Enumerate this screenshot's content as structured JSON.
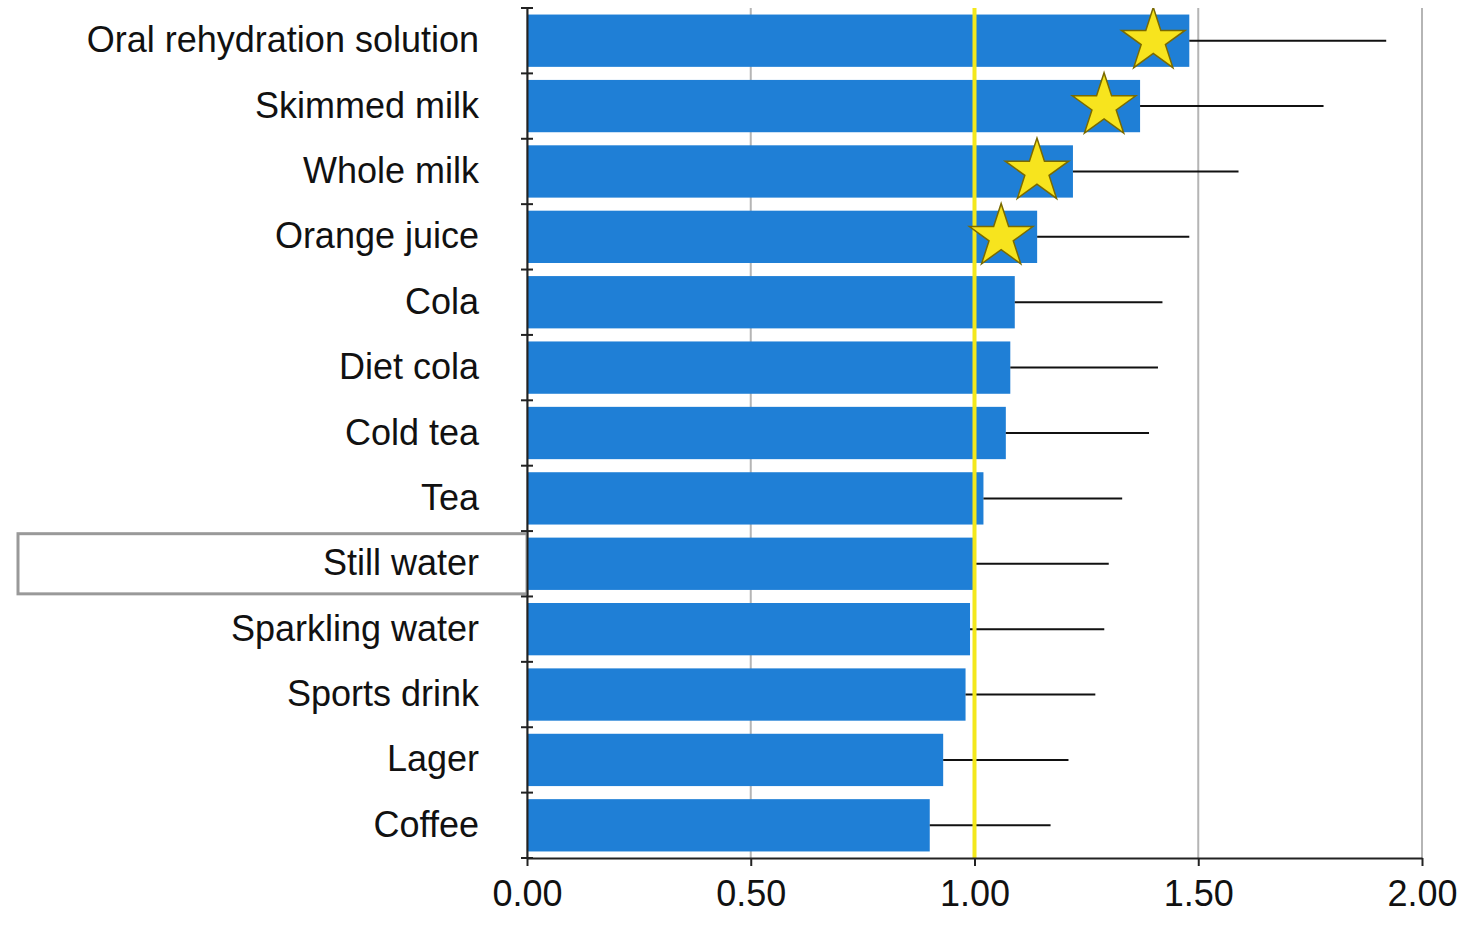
{
  "chart_data": {
    "type": "bar",
    "orientation": "horizontal",
    "categories": [
      "Oral rehydration solution",
      "Skimmed milk",
      "Whole milk",
      "Orange juice",
      "Cola",
      "Diet cola",
      "Cold tea",
      "Tea",
      "Still water",
      "Sparkling water",
      "Sports drink",
      "Lager",
      "Coffee"
    ],
    "values": [
      1.48,
      1.37,
      1.22,
      1.14,
      1.09,
      1.08,
      1.07,
      1.02,
      1.0,
      0.99,
      0.98,
      0.93,
      0.9
    ],
    "errors": [
      0.44,
      0.41,
      0.37,
      0.34,
      0.33,
      0.33,
      0.32,
      0.31,
      0.3,
      0.3,
      0.29,
      0.28,
      0.27
    ],
    "significant": [
      true,
      true,
      true,
      true,
      false,
      false,
      false,
      false,
      false,
      false,
      false,
      false,
      false
    ],
    "highlighted": [
      false,
      false,
      false,
      false,
      false,
      false,
      false,
      false,
      true,
      false,
      false,
      false,
      false
    ],
    "reference_x": 1,
    "color": "#1f7fd6",
    "xlim": [
      0,
      2
    ],
    "xticks": [
      {
        "value": 0,
        "label": "0.00"
      },
      {
        "value": 0.5,
        "label": "0.50"
      },
      {
        "value": 1,
        "label": "1.00"
      },
      {
        "value": 1.5,
        "label": "1.50"
      },
      {
        "value": 2,
        "label": "2.00"
      }
    ],
    "grid": true
  }
}
